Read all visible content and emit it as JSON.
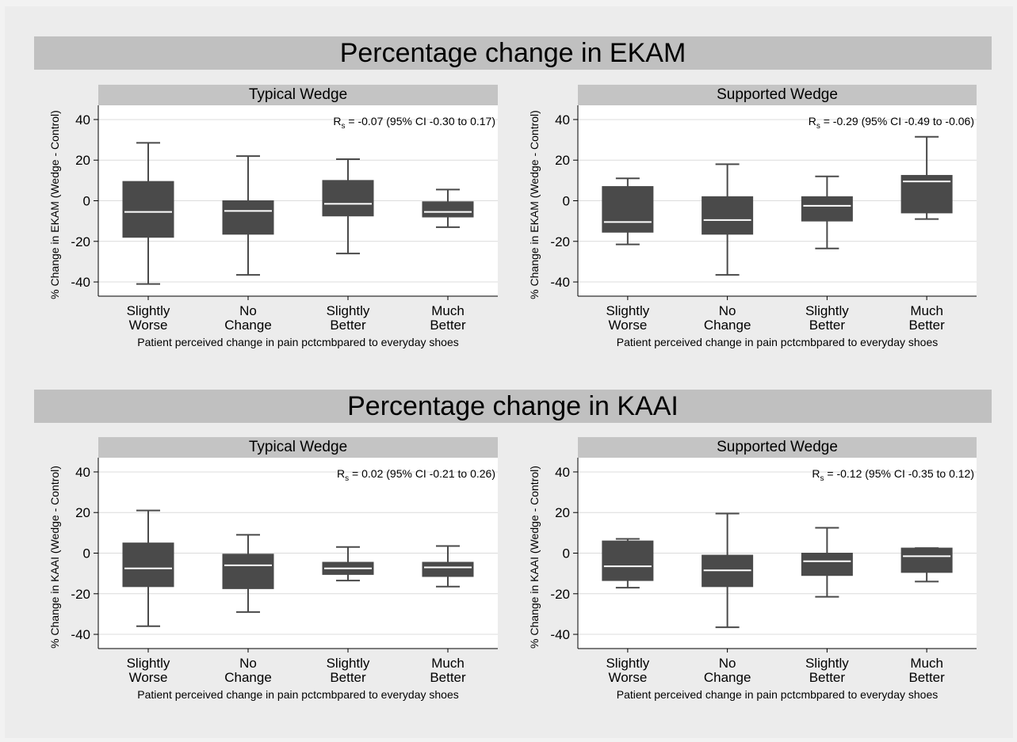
{
  "colors": {
    "box": "#4a4a4a",
    "median": "#ffffff",
    "whisker": "#4a4a4a",
    "grid": "#dcdcdc",
    "plot_bg": "#ffffff",
    "strip": "#c4c4c4"
  },
  "chart_data": [
    {
      "section": "Percentage change in EKAM",
      "panel": "Typical Wedge",
      "type": "box",
      "xlabel": "Patient perceived change in pain pctcmbpared to everyday shoes",
      "ylabel": "% Change in EKAM (Wedge - Control)",
      "annotation": {
        "r": "R",
        "sub": "s",
        "text": " = -0.07 (95% CI -0.30 to 0.17)"
      },
      "ylim": [
        -47,
        47
      ],
      "yticks": [
        "-40",
        "-20",
        "0",
        "20",
        "40"
      ],
      "categories": [
        [
          "Slightly",
          "Worse"
        ],
        [
          "No",
          "Change"
        ],
        [
          "Slightly",
          "Better"
        ],
        [
          "Much",
          "Better"
        ]
      ],
      "boxes": [
        {
          "min": -41,
          "q1": -18,
          "median": -5.5,
          "q3": 9.5,
          "max": 28.5
        },
        {
          "min": -36.5,
          "q1": -16.5,
          "median": -5,
          "q3": 0,
          "max": 22
        },
        {
          "min": -26,
          "q1": -7.5,
          "median": -1.5,
          "q3": 10,
          "max": 20.5
        },
        {
          "min": -13,
          "q1": -8,
          "median": -5.5,
          "q3": -0.5,
          "max": 5.5
        }
      ]
    },
    {
      "section": "Percentage change in EKAM",
      "panel": "Supported Wedge",
      "type": "box",
      "xlabel": "Patient perceived change in pain pctcmbpared to everyday shoes",
      "ylabel": "% Change in EKAM (Wedge - Control)",
      "annotation": {
        "r": "R",
        "sub": "s",
        "text": " = -0.29 (95% CI -0.49 to -0.06)"
      },
      "ylim": [
        -47,
        47
      ],
      "yticks": [
        "-40",
        "-20",
        "0",
        "20",
        "40"
      ],
      "categories": [
        [
          "Slightly",
          "Worse"
        ],
        [
          "No",
          "Change"
        ],
        [
          "Slightly",
          "Better"
        ],
        [
          "Much",
          "Better"
        ]
      ],
      "boxes": [
        {
          "min": -21.5,
          "q1": -15.5,
          "median": -10.5,
          "q3": 7,
          "max": 11
        },
        {
          "min": -36.5,
          "q1": -16.5,
          "median": -9.5,
          "q3": 2,
          "max": 18
        },
        {
          "min": -23.5,
          "q1": -10,
          "median": -2.5,
          "q3": 2,
          "max": 12
        },
        {
          "min": -9,
          "q1": -6,
          "median": 9.5,
          "q3": 12.5,
          "max": 31.5
        }
      ]
    },
    {
      "section": "Percentage change in KAAI",
      "panel": "Typical Wedge",
      "type": "box",
      "xlabel": "Patient perceived change in pain pctcmbpared to everyday shoes",
      "ylabel": "% Change in KAAI (Wedge - Control)",
      "annotation": {
        "r": "R",
        "sub": "s",
        "text": " = 0.02 (95% CI -0.21 to 0.26)"
      },
      "ylim": [
        -47,
        47
      ],
      "yticks": [
        "-40",
        "-20",
        "0",
        "20",
        "40"
      ],
      "categories": [
        [
          "Slightly",
          "Worse"
        ],
        [
          "No",
          "Change"
        ],
        [
          "Slightly",
          "Better"
        ],
        [
          "Much",
          "Better"
        ]
      ],
      "boxes": [
        {
          "min": -36,
          "q1": -16.5,
          "median": -7.5,
          "q3": 5,
          "max": 21
        },
        {
          "min": -29,
          "q1": -17.5,
          "median": -6,
          "q3": -0.5,
          "max": 9
        },
        {
          "min": -13.5,
          "q1": -10.5,
          "median": -7.5,
          "q3": -4.5,
          "max": 3
        },
        {
          "min": -16.5,
          "q1": -11.5,
          "median": -7,
          "q3": -4.5,
          "max": 3.5
        }
      ]
    },
    {
      "section": "Percentage change in KAAI",
      "panel": "Supported Wedge",
      "type": "box",
      "xlabel": "Patient perceived change in pain pctcmbpared to everyday shoes",
      "ylabel": "% Change in KAAI (Wedge - Control)",
      "annotation": {
        "r": "R",
        "sub": "s",
        "text": " = -0.12 (95% CI -0.35 to 0.12)"
      },
      "ylim": [
        -47,
        47
      ],
      "yticks": [
        "-40",
        "-20",
        "0",
        "20",
        "40"
      ],
      "categories": [
        [
          "Slightly",
          "Worse"
        ],
        [
          "No",
          "Change"
        ],
        [
          "Slightly",
          "Better"
        ],
        [
          "Much",
          "Better"
        ]
      ],
      "boxes": [
        {
          "min": -17,
          "q1": -13.5,
          "median": -6.5,
          "q3": 6,
          "max": 7
        },
        {
          "min": -36.5,
          "q1": -16.5,
          "median": -8.5,
          "q3": -1,
          "max": 19.5
        },
        {
          "min": -21.5,
          "q1": -11,
          "median": -4,
          "q3": 0,
          "max": 12.5
        },
        {
          "min": -14,
          "q1": -9.5,
          "median": -1.5,
          "q3": 2.5,
          "max": 2.5
        }
      ]
    }
  ],
  "sections": [
    "Percentage change in EKAM",
    "Percentage change in KAAI"
  ]
}
